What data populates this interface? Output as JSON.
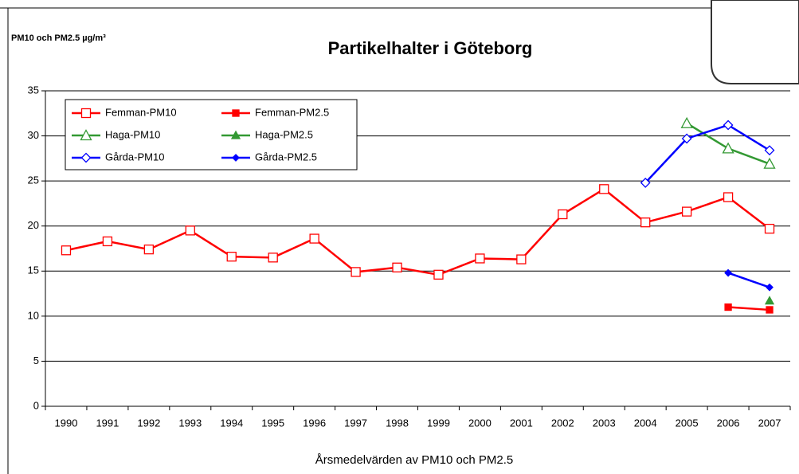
{
  "chart_data": {
    "type": "line",
    "title": "Partikelhalter i Göteborg",
    "y_label": "PM10 och PM2.5  µg/m³",
    "x_label": "Årsmedelvärden av PM10 och PM2.5",
    "categories": [
      "1990",
      "1991",
      "1992",
      "1993",
      "1994",
      "1995",
      "1996",
      "1997",
      "1998",
      "1999",
      "2000",
      "2001",
      "2002",
      "2003",
      "2004",
      "2005",
      "2006",
      "2007"
    ],
    "series": [
      {
        "name": "Femman-PM10",
        "color": "#ff0000",
        "marker": "square",
        "filled": false,
        "values": [
          17.3,
          18.3,
          17.4,
          19.5,
          16.6,
          16.5,
          18.6,
          14.9,
          15.4,
          14.6,
          16.4,
          16.3,
          21.3,
          24.1,
          20.4,
          21.6,
          23.2,
          19.7
        ]
      },
      {
        "name": "Femman-PM2.5",
        "color": "#ff0000",
        "marker": "square",
        "filled": true,
        "values": [
          null,
          null,
          null,
          null,
          null,
          null,
          null,
          null,
          null,
          null,
          null,
          null,
          null,
          null,
          null,
          null,
          11.0,
          10.7
        ]
      },
      {
        "name": "Haga-PM10",
        "color": "#339933",
        "marker": "triangle",
        "filled": false,
        "values": [
          null,
          null,
          null,
          null,
          null,
          null,
          null,
          null,
          null,
          null,
          null,
          null,
          null,
          null,
          null,
          31.4,
          28.6,
          26.9
        ]
      },
      {
        "name": "Haga-PM2.5",
        "color": "#339933",
        "marker": "triangle",
        "filled": true,
        "values": [
          null,
          null,
          null,
          null,
          null,
          null,
          null,
          null,
          null,
          null,
          null,
          null,
          null,
          null,
          null,
          null,
          null,
          11.7
        ]
      },
      {
        "name": "Gårda-PM10",
        "color": "#0000ff",
        "marker": "diamond",
        "filled": false,
        "values": [
          null,
          null,
          null,
          null,
          null,
          null,
          null,
          null,
          null,
          null,
          null,
          null,
          null,
          null,
          24.8,
          29.7,
          31.2,
          28.4
        ]
      },
      {
        "name": "Gårda-PM2.5",
        "color": "#0000ff",
        "marker": "diamond",
        "filled": true,
        "values": [
          null,
          null,
          null,
          null,
          null,
          null,
          null,
          null,
          null,
          null,
          null,
          null,
          null,
          null,
          null,
          null,
          14.8,
          13.2
        ]
      }
    ],
    "ylim": [
      0,
      35
    ],
    "yticks": [
      0,
      5,
      10,
      15,
      20,
      25,
      30,
      35
    ],
    "grid": true,
    "legend": "upper left"
  }
}
